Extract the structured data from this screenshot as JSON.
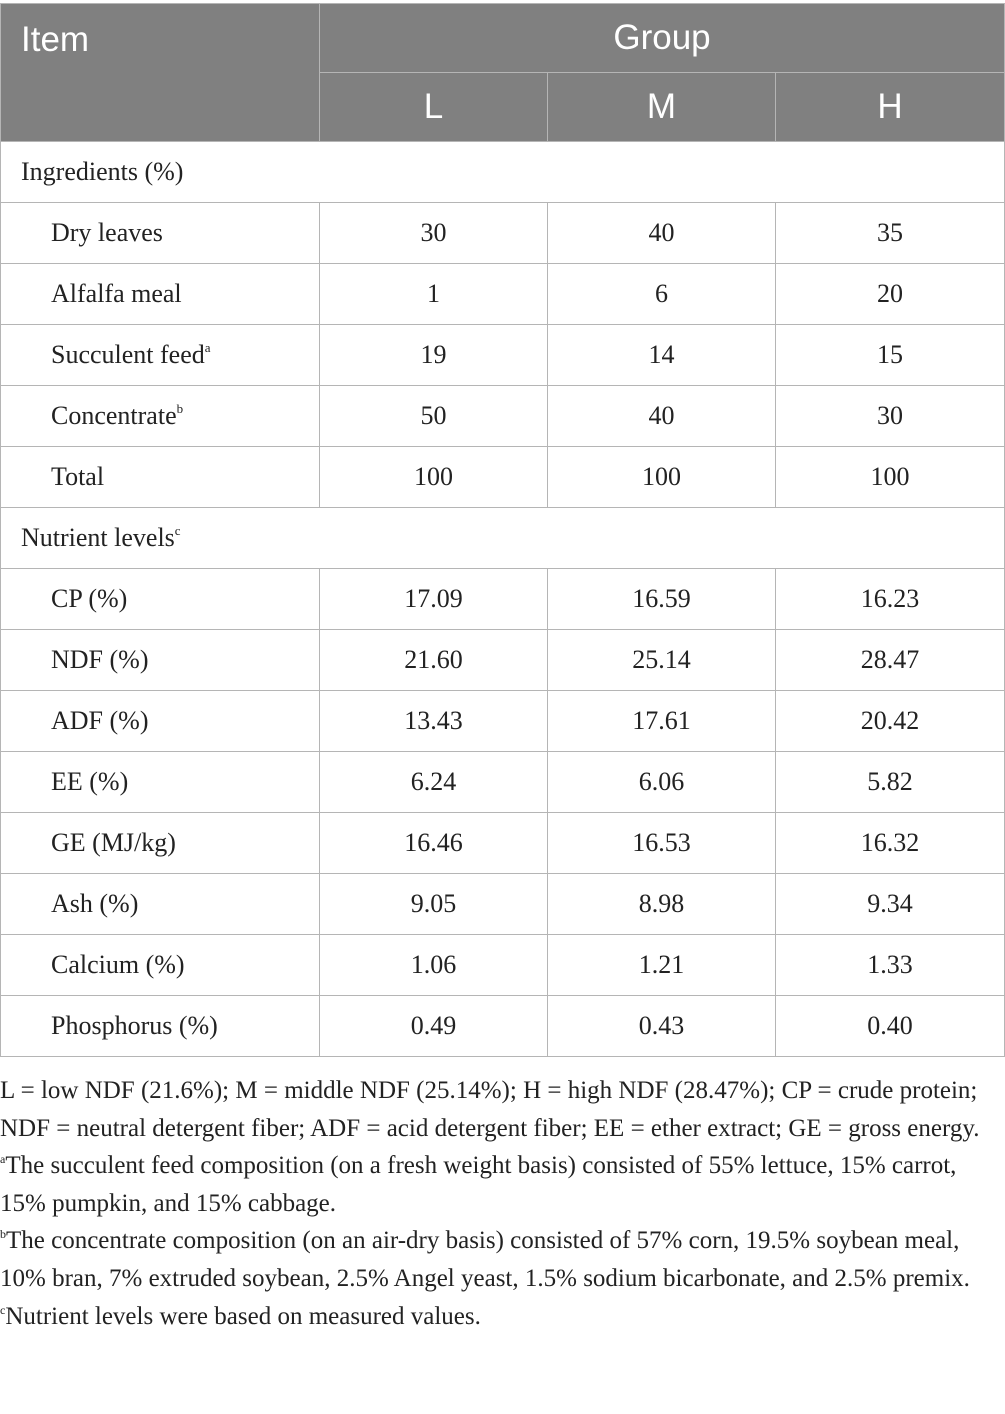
{
  "table": {
    "header": {
      "item": "Item",
      "group": "Group",
      "groups": [
        "L",
        "M",
        "H"
      ]
    },
    "sections": [
      {
        "title": "Ingredients (%)",
        "title_sup": "",
        "rows": [
          {
            "label": "Dry leaves",
            "sup": "",
            "values": [
              "30",
              "40",
              "35"
            ]
          },
          {
            "label": "Alfalfa meal",
            "sup": "",
            "values": [
              "1",
              "6",
              "20"
            ]
          },
          {
            "label": "Succulent feed",
            "sup": "a",
            "values": [
              "19",
              "14",
              "15"
            ]
          },
          {
            "label": "Concentrate",
            "sup": "b",
            "values": [
              "50",
              "40",
              "30"
            ]
          },
          {
            "label": "Total",
            "sup": "",
            "values": [
              "100",
              "100",
              "100"
            ]
          }
        ]
      },
      {
        "title": "Nutrient levels",
        "title_sup": "c",
        "rows": [
          {
            "label": "CP (%)",
            "sup": "",
            "values": [
              "17.09",
              "16.59",
              "16.23"
            ]
          },
          {
            "label": "NDF (%)",
            "sup": "",
            "values": [
              "21.60",
              "25.14",
              "28.47"
            ]
          },
          {
            "label": "ADF (%)",
            "sup": "",
            "values": [
              "13.43",
              "17.61",
              "20.42"
            ]
          },
          {
            "label": "EE (%)",
            "sup": "",
            "values": [
              "6.24",
              "6.06",
              "5.82"
            ]
          },
          {
            "label": "GE (MJ/kg)",
            "sup": "",
            "values": [
              "16.46",
              "16.53",
              "16.32"
            ]
          },
          {
            "label": "Ash (%)",
            "sup": "",
            "values": [
              "9.05",
              "8.98",
              "9.34"
            ]
          },
          {
            "label": "Calcium (%)",
            "sup": "",
            "values": [
              "1.06",
              "1.21",
              "1.33"
            ]
          },
          {
            "label": "Phosphorus (%)",
            "sup": "",
            "values": [
              "0.49",
              "0.43",
              "0.40"
            ]
          }
        ]
      }
    ]
  },
  "footnotes": {
    "abbreviations": "L = low NDF (21.6%); M = middle NDF (25.14%); H = high NDF (28.47%); CP = crude protein; NDF = neutral detergent fiber; ADF = acid detergent fiber; EE = ether extract; GE = gross energy.",
    "a": {
      "mark": "a",
      "text": "The succulent feed composition (on a fresh weight basis) consisted of 55% lettuce, 15% carrot, 15% pumpkin, and 15% cabbage."
    },
    "b": {
      "mark": "b",
      "text": "The concentrate composition (on an air-dry basis) consisted of 57% corn, 19.5% soybean meal, 10% bran, 7% extruded soybean, 2.5% Angel yeast, 1.5% sodium bicarbonate, and 2.5% premix."
    },
    "c": {
      "mark": "c",
      "text": "Nutrient levels were based on measured values."
    }
  },
  "colors": {
    "header_bg": "#808080",
    "header_text": "#ffffff",
    "grid": "#b5b5b5",
    "body_text": "#222222"
  }
}
